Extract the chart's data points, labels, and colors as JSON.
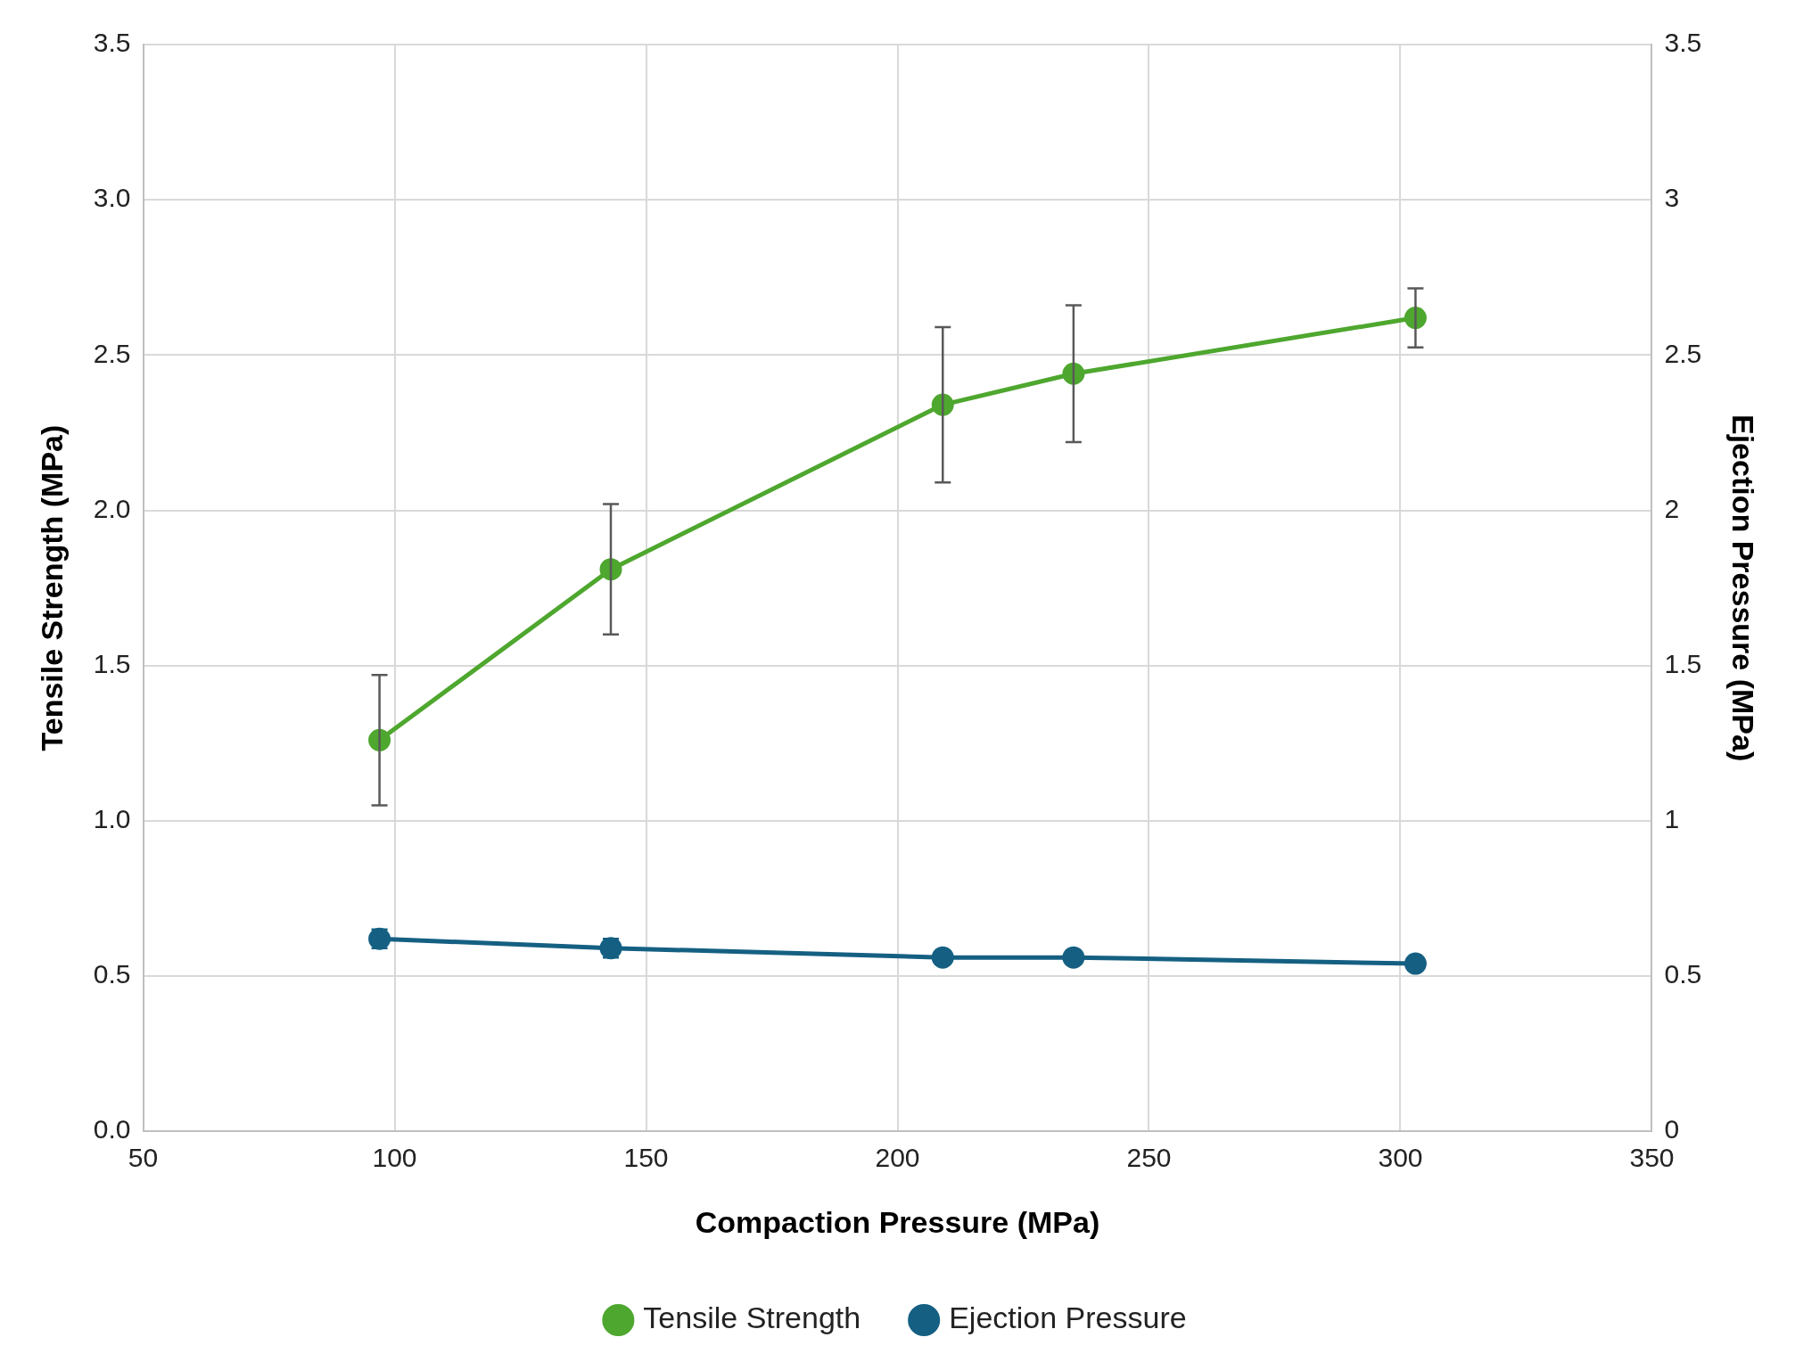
{
  "chart_data": {
    "type": "line",
    "xlabel": "Compaction Pressure (MPa)",
    "ylabel": "Tensile Strength (MPa)",
    "y2label": "Ejection Pressure (MPa)",
    "x": [
      97,
      143,
      209,
      235,
      303
    ],
    "series": [
      {
        "name": "Tensile Strength",
        "color": "#4ea72e",
        "values": [
          1.26,
          1.81,
          2.34,
          2.44,
          2.62
        ],
        "errors": [
          0.21,
          0.21,
          0.25,
          0.22,
          0.095
        ]
      },
      {
        "name": "Ejection Pressure",
        "color": "#156082",
        "axis": "y2",
        "values": [
          0.62,
          0.59,
          0.56,
          0.56,
          0.54
        ],
        "errors": [
          0.03,
          0.03,
          null,
          null,
          null
        ]
      }
    ],
    "xlim": [
      50,
      350
    ],
    "xticks": [
      50,
      100,
      150,
      200,
      250,
      300,
      350
    ],
    "ylim": [
      0,
      3.5
    ],
    "yticks": [
      {
        "value": 0,
        "label": "0.0"
      },
      {
        "value": 0.5,
        "label": "0.5"
      },
      {
        "value": 1,
        "label": "1.0"
      },
      {
        "value": 1.5,
        "label": "1.5"
      },
      {
        "value": 2,
        "label": "2.0"
      },
      {
        "value": 2.5,
        "label": "2.5"
      },
      {
        "value": 3,
        "label": "3.0"
      },
      {
        "value": 3.5,
        "label": "3.5"
      }
    ],
    "y2lim": [
      0,
      3.5
    ],
    "y2ticks": [
      0,
      0.5,
      1,
      1.5,
      2,
      2.5,
      3,
      3.5
    ],
    "grid": true,
    "legend": "bottom",
    "marker": "circle",
    "line_style": "solid"
  }
}
